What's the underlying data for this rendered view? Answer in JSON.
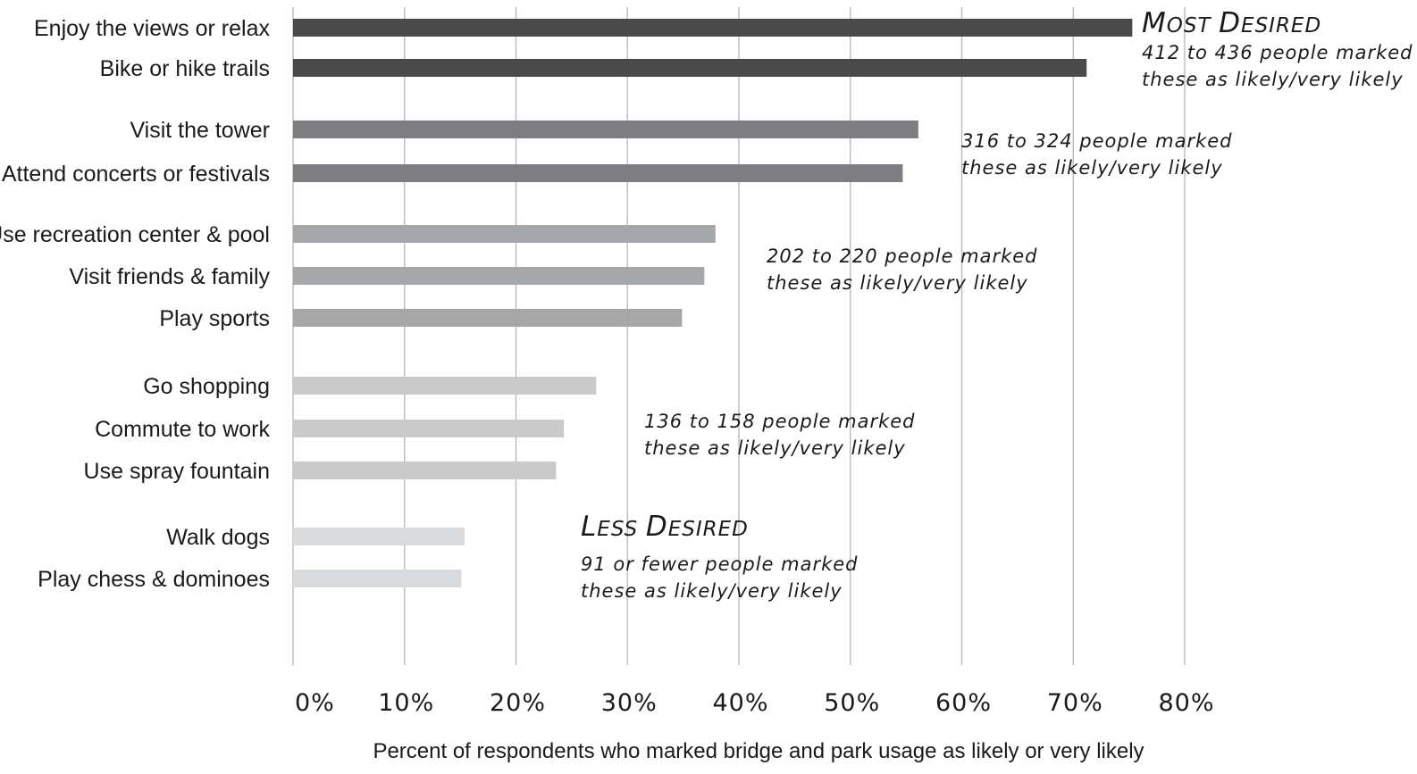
{
  "chart_data": {
    "type": "bar",
    "orientation": "horizontal",
    "categories": [
      "Enjoy the views or relax",
      "Bike or hike trails",
      "Visit the tower",
      "Attend concerts or festivals",
      "Use recreation center & pool",
      "Visit friends & family",
      "Play sports",
      "Go shopping",
      "Commute to work",
      "Use spray fountain",
      "Walk dogs",
      "Play chess & dominoes"
    ],
    "values": [
      75.3,
      71.2,
      56.1,
      54.7,
      37.9,
      36.9,
      34.9,
      27.2,
      24.3,
      23.6,
      15.4,
      15.1
    ],
    "group_of_bar": [
      0,
      0,
      1,
      1,
      2,
      2,
      2,
      3,
      3,
      3,
      4,
      4
    ],
    "group_colors": [
      "#4a4a4c",
      "#7d7e81",
      "#a6a7a9",
      "#c9cacc",
      "#d9dadb"
    ],
    "xlim": [
      0,
      80
    ],
    "xticks": [
      0,
      10,
      20,
      30,
      40,
      50,
      60,
      70,
      80
    ],
    "tick_suffix": "%",
    "xlabel": "Percent of respondents who marked bridge and park usage as likely or very likely",
    "grid": true,
    "annotations": [
      {
        "heading": "Most Desired",
        "lines": [
          "412 to 436 people marked",
          "these as likely/very likely"
        ]
      },
      {
        "heading": "",
        "lines": [
          "316 to 324 people marked",
          "these as likely/very likely"
        ]
      },
      {
        "heading": "",
        "lines": [
          "202 to 220 people marked",
          "these as likely/very likely"
        ]
      },
      {
        "heading": "",
        "lines": [
          "136 to 158 people marked",
          "these as likely/very likely"
        ]
      },
      {
        "heading": "Less Desired",
        "lines": [
          "91 or fewer people marked",
          "these as likely/very likely"
        ]
      }
    ]
  }
}
